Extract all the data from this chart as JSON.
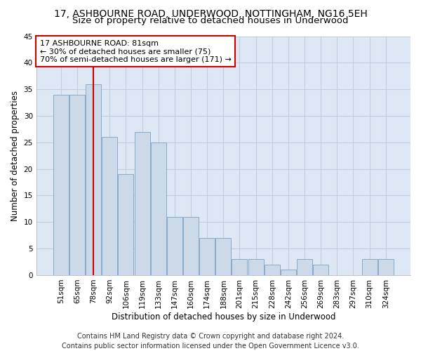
{
  "title_line1": "17, ASHBOURNE ROAD, UNDERWOOD, NOTTINGHAM, NG16 5EH",
  "title_line2": "Size of property relative to detached houses in Underwood",
  "xlabel": "Distribution of detached houses by size in Underwood",
  "ylabel": "Number of detached properties",
  "categories": [
    "51sqm",
    "65sqm",
    "78sqm",
    "92sqm",
    "106sqm",
    "119sqm",
    "133sqm",
    "147sqm",
    "160sqm",
    "174sqm",
    "188sqm",
    "201sqm",
    "215sqm",
    "228sqm",
    "242sqm",
    "256sqm",
    "269sqm",
    "283sqm",
    "297sqm",
    "310sqm",
    "324sqm"
  ],
  "values": [
    34,
    34,
    36,
    26,
    19,
    27,
    25,
    11,
    11,
    7,
    7,
    3,
    3,
    2,
    1,
    3,
    2,
    0,
    0,
    3,
    3
  ],
  "bar_color": "#ccd9e8",
  "bar_edge_color": "#88aac8",
  "vline_x_index": 2,
  "vline_color": "#cc0000",
  "annotation_text": "17 ASHBOURNE ROAD: 81sqm\n← 30% of detached houses are smaller (75)\n70% of semi-detached houses are larger (171) →",
  "annotation_box_facecolor": "#ffffff",
  "annotation_box_edgecolor": "#cc0000",
  "ylim": [
    0,
    45
  ],
  "yticks": [
    0,
    5,
    10,
    15,
    20,
    25,
    30,
    35,
    40,
    45
  ],
  "grid_color": "#c0cfe0",
  "background_color": "#dde8f4",
  "footer_line1": "Contains HM Land Registry data © Crown copyright and database right 2024.",
  "footer_line2": "Contains public sector information licensed under the Open Government Licence v3.0.",
  "title_fontsize": 10,
  "subtitle_fontsize": 9.5,
  "axis_label_fontsize": 8.5,
  "tick_fontsize": 7.5,
  "annotation_fontsize": 8,
  "footer_fontsize": 7
}
